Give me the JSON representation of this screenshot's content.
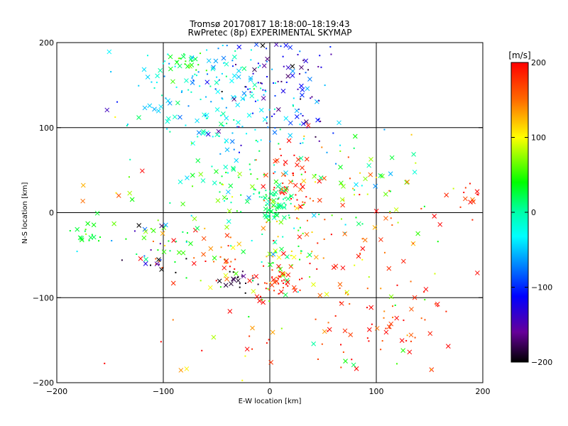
{
  "chart_data": {
    "type": "scatter",
    "title": "Tromsø 20170817 18:18:00–18:19:43",
    "subtitle": "RwPretec (8p) EXPERIMENTAL SKYMAP",
    "xlabel": "E-W location [km]",
    "ylabel": "N-S location [km]",
    "xlim": [
      -200,
      200
    ],
    "ylim": [
      -200,
      200
    ],
    "x_ticks": [
      -200,
      -100,
      0,
      100,
      200
    ],
    "y_ticks": [
      -200,
      -100,
      0,
      100,
      200
    ],
    "grid": true,
    "colorbar": {
      "label": "[m/s]",
      "range": [
        -200,
        200
      ],
      "ticks": [
        200,
        100,
        0,
        -100,
        -200
      ]
    },
    "clusters": [
      {
        "x": -80,
        "y": 175,
        "sx": 10,
        "sy": 8,
        "n": 25,
        "v": 40,
        "sv": 15
      },
      {
        "x": -60,
        "y": 160,
        "sx": 40,
        "sy": 30,
        "n": 110,
        "v": -40,
        "sv": 30
      },
      {
        "x": 5,
        "y": 170,
        "sx": 25,
        "sy": 25,
        "n": 70,
        "v": -140,
        "sv": 40
      },
      {
        "x": -40,
        "y": 110,
        "sx": 40,
        "sy": 25,
        "n": 60,
        "v": -30,
        "sv": 25
      },
      {
        "x": 15,
        "y": 110,
        "sx": 25,
        "sy": 20,
        "n": 40,
        "v": -100,
        "sv": 50
      },
      {
        "x": 20,
        "y": 40,
        "sx": 12,
        "sy": 20,
        "n": 55,
        "v": 180,
        "sv": 25
      },
      {
        "x": 5,
        "y": 10,
        "sx": 8,
        "sy": 12,
        "n": 60,
        "v": 10,
        "sv": 10
      },
      {
        "x": -30,
        "y": 40,
        "sx": 30,
        "sy": 25,
        "n": 60,
        "v": 20,
        "sv": 40
      },
      {
        "x": 70,
        "y": 40,
        "sx": 30,
        "sy": 30,
        "n": 50,
        "v": 40,
        "sv": 60
      },
      {
        "x": 10,
        "y": -40,
        "sx": 15,
        "sy": 30,
        "n": 60,
        "v": 70,
        "sv": 60
      },
      {
        "x": 5,
        "y": -85,
        "sx": 12,
        "sy": 8,
        "n": 40,
        "v": 190,
        "sv": 15
      },
      {
        "x": -25,
        "y": -80,
        "sx": 12,
        "sy": 6,
        "n": 20,
        "v": -190,
        "sv": 15
      },
      {
        "x": -60,
        "y": -50,
        "sx": 25,
        "sy": 20,
        "n": 50,
        "v": 130,
        "sv": 80
      },
      {
        "x": -110,
        "y": -40,
        "sx": 20,
        "sy": 20,
        "n": 35,
        "v": -60,
        "sv": 120
      },
      {
        "x": -170,
        "y": -25,
        "sx": 8,
        "sy": 8,
        "n": 15,
        "v": 30,
        "sv": 10
      },
      {
        "x": 70,
        "y": -80,
        "sx": 50,
        "sy": 40,
        "n": 70,
        "v": 150,
        "sv": 60
      },
      {
        "x": 120,
        "y": -130,
        "sx": 40,
        "sy": 30,
        "n": 45,
        "v": 180,
        "sv": 30
      },
      {
        "x": 100,
        "y": 20,
        "sx": 50,
        "sy": 40,
        "n": 40,
        "v": 120,
        "sv": 70
      },
      {
        "x": 190,
        "y": 15,
        "sx": 6,
        "sy": 12,
        "n": 12,
        "v": 180,
        "sv": 20
      },
      {
        "x": -130,
        "y": 30,
        "sx": 40,
        "sy": 50,
        "n": 25,
        "v": 80,
        "sv": 100
      },
      {
        "x": 0,
        "y": -150,
        "sx": 60,
        "sy": 30,
        "n": 30,
        "v": 120,
        "sv": 80
      }
    ]
  }
}
